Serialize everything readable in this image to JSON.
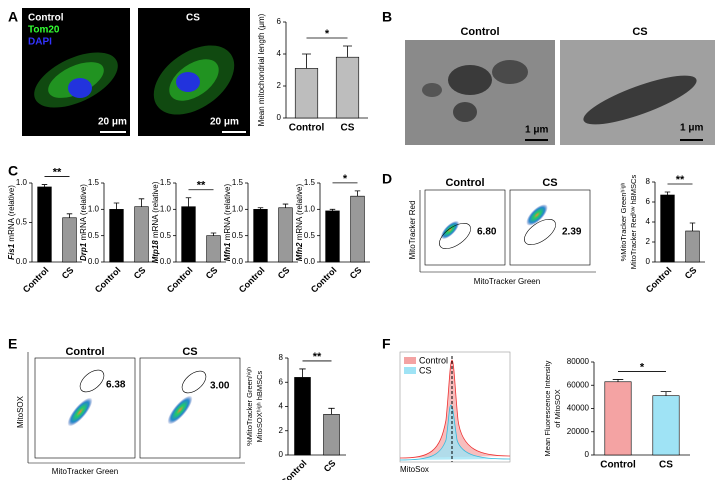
{
  "figure": {
    "panel_labels": [
      "A",
      "B",
      "C",
      "D",
      "E",
      "F"
    ],
    "a_image": {
      "control": "Control",
      "tom20": "Tom20",
      "dapi": "DAPI",
      "cs": "CS",
      "scale": "20 μm"
    },
    "b_image": {
      "control": "Control",
      "cs": "CS",
      "scale": "1 μm"
    },
    "d_flow": {
      "control": "Control",
      "cs": "CS",
      "y": "MitoTracker Red",
      "x": "MitoTracker Green",
      "gates": [
        "6.80",
        "2.39"
      ]
    },
    "e_flow": {
      "control": "Control",
      "cs": "CS",
      "y": "MitoSOX",
      "x": "MitoTracker Green",
      "gates": [
        "6.38",
        "3.00"
      ]
    },
    "f_hist": {
      "legend": [
        "Control",
        "CS"
      ],
      "legend_colors": [
        "#f4a3a3",
        "#9fe3f5"
      ],
      "x": "MitoSox"
    }
  },
  "chart_data": [
    {
      "type": "bar",
      "ylabel": "Mean mitochondrial length (μm)",
      "categories": [
        "Control",
        "CS"
      ],
      "values": [
        3.1,
        3.8
      ],
      "errors": [
        0.9,
        0.7
      ],
      "colors": [
        "#bdbdbd",
        "#bdbdbd"
      ],
      "ylim": [
        0,
        6
      ],
      "yticks": [
        0,
        2,
        4,
        6
      ],
      "significance": "*"
    },
    {
      "type": "bar",
      "gene": "Fis1",
      "ylabel": "mRNA (relative)",
      "categories": [
        "Control",
        "CS"
      ],
      "values": [
        0.95,
        0.56
      ],
      "errors": [
        0.03,
        0.05
      ],
      "colors": [
        "#000000",
        "#999999"
      ],
      "ylim": [
        0,
        1.0
      ],
      "yticks": [
        {
          "value": 0,
          "label": "0.0"
        },
        {
          "value": 0.5,
          "label": "0.5"
        },
        {
          "value": 1,
          "label": "1.0"
        }
      ],
      "significance": "**"
    },
    {
      "type": "bar",
      "gene": "Drp1",
      "ylabel": "mRNA (relative)",
      "categories": [
        "Control",
        "CS"
      ],
      "values": [
        1.0,
        1.05
      ],
      "errors": [
        0.12,
        0.15
      ],
      "colors": [
        "#000000",
        "#999999"
      ],
      "ylim": [
        0,
        1.5
      ],
      "yticks": [
        {
          "value": 0,
          "label": "0.0"
        },
        {
          "value": 0.5,
          "label": "0.5"
        },
        {
          "value": 1,
          "label": "1.0"
        },
        {
          "value": 1.5,
          "label": "1.5"
        }
      ]
    },
    {
      "type": "bar",
      "gene": "Mtp18",
      "ylabel": "mRNA (relative)",
      "categories": [
        "Control",
        "CS"
      ],
      "values": [
        1.05,
        0.5
      ],
      "errors": [
        0.17,
        0.05
      ],
      "colors": [
        "#000000",
        "#999999"
      ],
      "ylim": [
        0,
        1.5
      ],
      "yticks": [
        {
          "value": 0,
          "label": "0.0"
        },
        {
          "value": 0.5,
          "label": "0.5"
        },
        {
          "value": 1,
          "label": "1.0"
        },
        {
          "value": 1.5,
          "label": "1.5"
        }
      ],
      "significance": "**"
    },
    {
      "type": "bar",
      "gene": "Mfn1",
      "ylabel": "mRNA (relative)",
      "categories": [
        "Control",
        "CS"
      ],
      "values": [
        1.0,
        1.03
      ],
      "errors": [
        0.03,
        0.07
      ],
      "colors": [
        "#000000",
        "#999999"
      ],
      "ylim": [
        0,
        1.5
      ],
      "yticks": [
        {
          "value": 0,
          "label": "0.0"
        },
        {
          "value": 0.5,
          "label": "0.5"
        },
        {
          "value": 1,
          "label": "1.0"
        },
        {
          "value": 1.5,
          "label": "1.5"
        }
      ]
    },
    {
      "type": "bar",
      "gene": "Mfn2",
      "ylabel": "mRNA (relative)",
      "categories": [
        "Control",
        "CS"
      ],
      "values": [
        0.97,
        1.25
      ],
      "errors": [
        0.03,
        0.1
      ],
      "colors": [
        "#000000",
        "#999999"
      ],
      "ylim": [
        0,
        1.5
      ],
      "yticks": [
        {
          "value": 0,
          "label": "0.0"
        },
        {
          "value": 0.5,
          "label": "0.5"
        },
        {
          "value": 1,
          "label": "1.0"
        },
        {
          "value": 1.5,
          "label": "1.5"
        }
      ],
      "significance": "*"
    },
    {
      "type": "bar",
      "ylabel": [
        "%MitoTracker Greenʰⁱᵍʰ",
        "MitoTracker Redˡᵒʷ hBMSCs"
      ],
      "categories": [
        "Control",
        "CS"
      ],
      "values": [
        6.7,
        3.1
      ],
      "errors": [
        0.3,
        0.8
      ],
      "colors": [
        "#000000",
        "#999999"
      ],
      "ylim": [
        0,
        8
      ],
      "yticks": [
        0,
        2,
        4,
        6,
        8
      ],
      "significance": "**"
    },
    {
      "type": "bar",
      "ylabel": [
        "%MitoTracker Greenʰⁱᵍʰ",
        "MitoSOXʰⁱᵍʰ hBMSCs"
      ],
      "categories": [
        "Control",
        "CS"
      ],
      "values": [
        6.4,
        3.35
      ],
      "errors": [
        0.7,
        0.5
      ],
      "colors": [
        "#000000",
        "#999999"
      ],
      "ylim": [
        0,
        8
      ],
      "yticks": [
        0,
        2,
        4,
        6,
        8
      ],
      "significance": "**"
    },
    {
      "type": "bar",
      "ylabel": [
        "Mean Fluorescence Intensity",
        "of MitoSOX"
      ],
      "categories": [
        "Control",
        "CS"
      ],
      "values": [
        63000,
        51000
      ],
      "errors": [
        2000,
        3500
      ],
      "colors": [
        "#f4a3a3",
        "#9fe3f5"
      ],
      "ylim": [
        0,
        80000
      ],
      "yticks": [
        0,
        20000,
        40000,
        60000,
        80000
      ],
      "significance": "*"
    }
  ]
}
